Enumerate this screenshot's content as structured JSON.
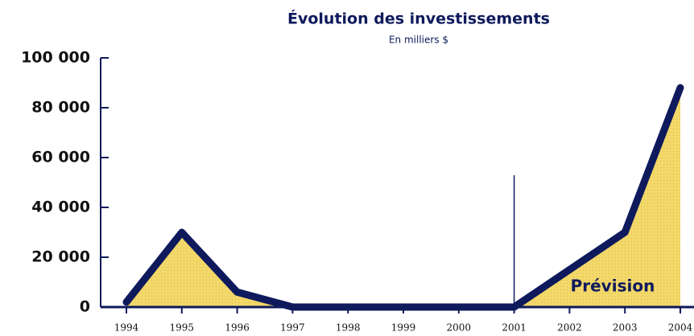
{
  "chart_data": {
    "type": "area",
    "title": "Évolution des investissements",
    "subtitle": "En milliers $",
    "categories": [
      "1994",
      "1995",
      "1996",
      "1997",
      "1998",
      "1999",
      "2000",
      "2001",
      "2002",
      "2003",
      "2004"
    ],
    "series": [
      {
        "name": "Investissements",
        "color": "#0e1a5c",
        "fill": "#f3d86a",
        "values": [
          2000,
          30000,
          6000,
          0,
          0,
          0,
          0,
          0,
          15000,
          30000,
          88000
        ]
      }
    ],
    "ylim": [
      0,
      100000
    ],
    "yticks": [
      0,
      {
        "value": 20000,
        "label": "20 000"
      },
      {
        "value": 40000,
        "label": "40 000"
      },
      {
        "value": 60000,
        "label": "60 000"
      },
      {
        "value": 80000,
        "label": "80 000"
      },
      {
        "value": 100000,
        "label": "100 000"
      }
    ],
    "annotation": {
      "text": "Prévision",
      "x": "2001"
    }
  }
}
